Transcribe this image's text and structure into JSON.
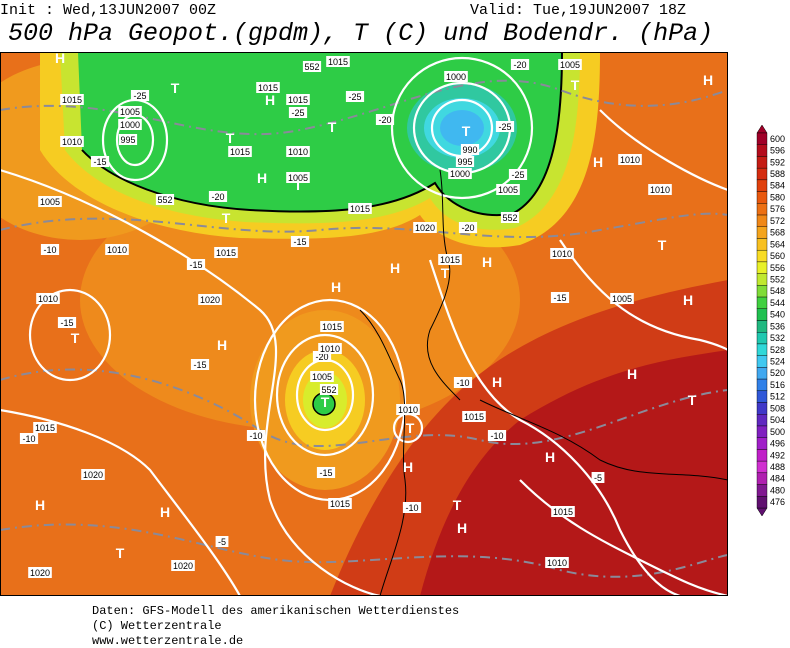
{
  "header": {
    "init": "Init : Wed,13JUN2007 00Z",
    "valid": "Valid: Tue,19JUN2007 18Z",
    "title": "500 hPa Geopot.(gpdm), T (C) und Bodendr. (hPa)"
  },
  "colorbar": {
    "labels": [
      600,
      596,
      592,
      588,
      584,
      580,
      576,
      572,
      568,
      564,
      560,
      556,
      552,
      548,
      544,
      540,
      536,
      532,
      528,
      524,
      520,
      516,
      512,
      508,
      504,
      500,
      496,
      492,
      488,
      484,
      480,
      476
    ],
    "colors": [
      "#a00028",
      "#b40c1c",
      "#c41c14",
      "#d42c10",
      "#e0400c",
      "#e8580e",
      "#ec7014",
      "#f08818",
      "#f4a41c",
      "#f8c020",
      "#f8dc24",
      "#e8f028",
      "#c0e830",
      "#80dc38",
      "#40d040",
      "#20c050",
      "#20b880",
      "#20c8b0",
      "#30d8d8",
      "#40c8f0",
      "#40a8f0",
      "#3080e8",
      "#3058d8",
      "#4038c8",
      "#6028c0",
      "#8020c0",
      "#a020c8",
      "#c020c8",
      "#d030d0",
      "#b020b0",
      "#801890",
      "#601070"
    ]
  },
  "map_labels": [
    "H",
    "T",
    "1015",
    "1015",
    "-25",
    "1005",
    "1000",
    "995",
    "1010",
    "-15",
    "T",
    "1015",
    "H",
    "1015",
    "-25",
    "T",
    "-25",
    "1015",
    "1010",
    "H",
    "T",
    "1005",
    "-20",
    "T",
    "1015",
    "1000",
    "T",
    "-20",
    "-25",
    "990",
    "995",
    "1000",
    "1005",
    "-25",
    "-20",
    "1005",
    "T",
    "H",
    "H",
    "1010",
    "1010",
    "1020",
    "-20",
    "H",
    "T",
    "H",
    "1015",
    "1005",
    "H",
    "T",
    "1010",
    "-15",
    "-15",
    "T",
    "1010",
    "1020",
    "H",
    "-15",
    "1015",
    "-20",
    "1010",
    "1005",
    "T",
    "H",
    "1010",
    "T",
    "H",
    "-10",
    "H",
    "1015",
    "-10",
    "H",
    "-5",
    "T",
    "H",
    "1015",
    "1010",
    "T",
    "H",
    "H",
    "1015",
    "1020",
    "-10",
    "1020",
    "1015",
    "-5",
    "1020",
    "-15",
    "-10",
    "T",
    "H",
    "-10",
    "1010",
    "-10",
    "1005",
    "-15",
    "-15",
    "1015",
    "552",
    "552",
    "552",
    "552"
  ],
  "footer": {
    "lines": [
      "Daten: GFS-Modell des amerikanischen Wetterdienstes",
      "(C) Wetterzentrale",
      "www.wetterzentrale.de"
    ]
  }
}
